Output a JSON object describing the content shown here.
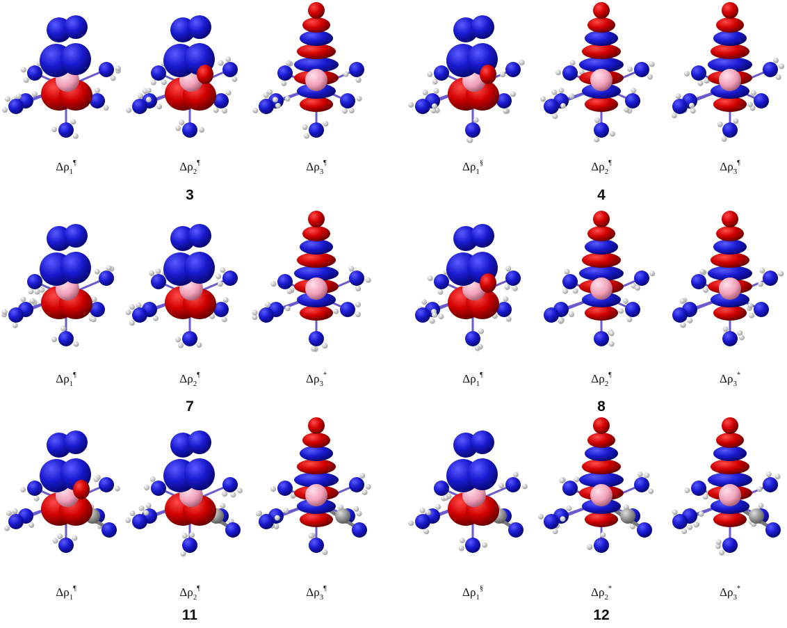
{
  "panels": [
    {
      "number": "3",
      "labels": [
        {
          "symbol": "Δρ",
          "sub": "1",
          "sup": "¶"
        },
        {
          "symbol": "Δρ",
          "sub": "2",
          "sup": "¶"
        },
        {
          "symbol": "Δρ",
          "sub": "3",
          "sup": "¶"
        }
      ]
    },
    {
      "number": "4",
      "labels": [
        {
          "symbol": "Δρ",
          "sub": "1",
          "sup": "§"
        },
        {
          "symbol": "Δρ",
          "sub": "2",
          "sup": "¶"
        },
        {
          "symbol": "Δρ",
          "sub": "3",
          "sup": "¶"
        }
      ]
    },
    {
      "number": "7",
      "labels": [
        {
          "symbol": "Δρ",
          "sub": "1",
          "sup": "¶"
        },
        {
          "symbol": "Δρ",
          "sub": "2",
          "sup": "¶"
        },
        {
          "symbol": "Δρ",
          "sub": "3",
          "sup": "*"
        }
      ]
    },
    {
      "number": "8",
      "labels": [
        {
          "symbol": "Δρ",
          "sub": "1",
          "sup": "¶"
        },
        {
          "symbol": "Δρ",
          "sub": "2",
          "sup": "¶"
        },
        {
          "symbol": "Δρ",
          "sub": "3",
          "sup": "*"
        }
      ]
    },
    {
      "number": "11",
      "labels": [
        {
          "symbol": "Δρ",
          "sub": "1",
          "sup": "¶"
        },
        {
          "symbol": "Δρ",
          "sub": "2",
          "sup": "¶"
        },
        {
          "symbol": "Δρ",
          "sub": "3",
          "sup": "¶"
        }
      ]
    },
    {
      "number": "12",
      "labels": [
        {
          "symbol": "Δρ",
          "sub": "1",
          "sup": "§"
        },
        {
          "symbol": "Δρ",
          "sub": "2",
          "sup": "*"
        },
        {
          "symbol": "Δρ",
          "sub": "3",
          "sup": "*"
        }
      ]
    }
  ]
}
